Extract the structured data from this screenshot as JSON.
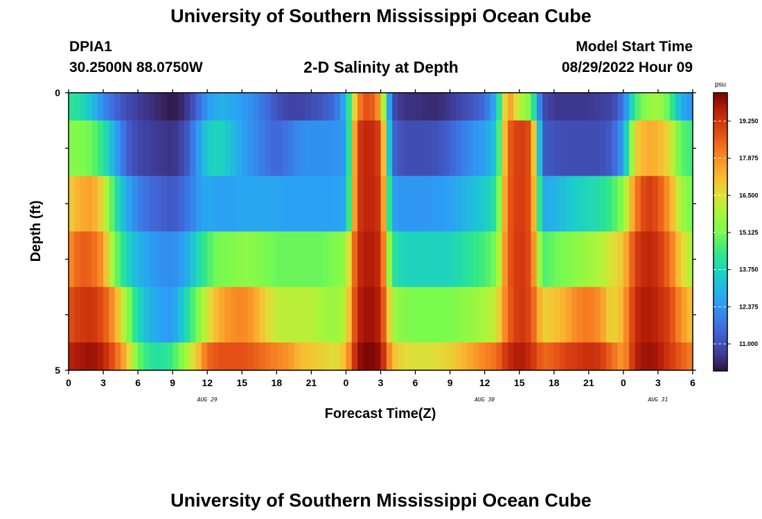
{
  "page": {
    "title_top": "University of Southern Mississippi Ocean Cube",
    "title_bottom": "University of Southern Mississippi Ocean Cube",
    "station": "DPIA1",
    "coords": "30.2500N  88.0750W",
    "chart_title": "2-D Salinity at Depth",
    "model_start_label": "Model Start Time",
    "model_start_value": "08/29/2022 Hour 09"
  },
  "chart_data": {
    "type": "heatmap",
    "title": "2-D Salinity at Depth",
    "xlabel": "Forecast Time(Z)",
    "ylabel": "Depth (ft)",
    "colorbar_unit": "psu",
    "colorbar_ticks": [
      "19.250",
      "17.875",
      "16.500",
      "15.125",
      "13.750",
      "12.375",
      "11.000"
    ],
    "colorbar_values": [
      19.25,
      17.875,
      16.5,
      15.125,
      13.75,
      12.375,
      11.0
    ],
    "zlim": [
      10.0,
      20.3
    ],
    "x_tick_labels": [
      "0",
      "3",
      "6",
      "9",
      "12",
      "15",
      "18",
      "21",
      "0",
      "3",
      "6",
      "9",
      "12",
      "15",
      "18",
      "21",
      "0",
      "3",
      "6"
    ],
    "x_ticks_hours": [
      0,
      3,
      6,
      9,
      12,
      15,
      18,
      21,
      24,
      27,
      30,
      33,
      36,
      39,
      42,
      45,
      48,
      51,
      54
    ],
    "date_labels": [
      {
        "text": "AUG 29",
        "hour": 12
      },
      {
        "text": "AUG 30",
        "hour": 36
      },
      {
        "text": "AUG 31",
        "hour": 51
      }
    ],
    "xlim_hours": [
      0,
      54
    ],
    "y_tick_labels": [
      "0",
      "5"
    ],
    "ylim_ft": [
      0,
      5
    ],
    "depth_bands_ft": [
      [
        0,
        0.5
      ],
      [
        0.5,
        1.5
      ],
      [
        1.5,
        2.5
      ],
      [
        2.5,
        3.5
      ],
      [
        3.5,
        4.5
      ],
      [
        4.5,
        5
      ]
    ],
    "time_knots_hours": [
      0,
      1,
      2,
      3,
      4,
      5,
      6,
      7,
      8,
      9,
      10,
      11,
      12,
      13,
      14,
      15,
      16,
      17,
      18,
      19,
      20,
      21,
      22,
      23,
      24,
      25,
      26,
      27,
      28,
      29,
      30,
      31,
      32,
      33,
      34,
      35,
      36,
      37,
      38,
      39,
      40,
      41,
      42,
      43,
      44,
      45,
      46,
      47,
      48,
      49,
      50,
      51,
      52,
      53,
      54
    ],
    "salinity_by_band": [
      [
        14.3,
        14.0,
        13.2,
        12.2,
        11.5,
        11.0,
        10.7,
        10.5,
        10.3,
        10.1,
        10.4,
        11.3,
        12.5,
        12.9,
        12.8,
        12.5,
        12.2,
        11.7,
        11.1,
        10.8,
        10.8,
        11.0,
        11.2,
        11.6,
        13.0,
        18.0,
        19.0,
        17.5,
        11.0,
        10.5,
        10.5,
        10.4,
        10.4,
        10.6,
        10.9,
        11.2,
        11.6,
        13.0,
        18.0,
        16.0,
        15.2,
        11.0,
        10.6,
        10.6,
        10.6,
        10.6,
        10.7,
        10.8,
        11.8,
        14.5,
        15.5,
        15.8,
        14.8,
        12.8,
        12.3
      ],
      [
        15.3,
        15.3,
        15.0,
        14.2,
        12.8,
        11.4,
        10.9,
        10.7,
        10.6,
        10.5,
        10.9,
        12.2,
        13.5,
        13.8,
        13.3,
        12.6,
        12.2,
        11.8,
        11.5,
        11.8,
        12.2,
        12.3,
        12.3,
        12.3,
        12.5,
        19.2,
        19.6,
        19.0,
        11.5,
        11.0,
        11.0,
        11.0,
        11.1,
        11.4,
        11.9,
        12.3,
        12.6,
        13.4,
        18.5,
        19.2,
        18.8,
        11.3,
        11.1,
        11.0,
        11.0,
        11.0,
        11.0,
        11.3,
        12.6,
        16.8,
        17.4,
        17.3,
        16.6,
        14.8,
        14.5
      ],
      [
        16.8,
        17.4,
        17.6,
        16.6,
        14.3,
        12.8,
        12.0,
        11.6,
        11.4,
        11.2,
        11.6,
        12.3,
        12.8,
        12.6,
        12.6,
        12.7,
        12.7,
        12.7,
        12.7,
        12.6,
        12.6,
        12.6,
        12.6,
        12.6,
        12.8,
        19.2,
        19.6,
        19.2,
        12.6,
        12.4,
        12.4,
        12.4,
        12.5,
        12.6,
        12.9,
        13.2,
        13.5,
        14.2,
        18.6,
        19.2,
        18.8,
        12.8,
        12.9,
        13.3,
        13.6,
        13.8,
        14.0,
        14.5,
        15.4,
        18.0,
        19.2,
        18.8,
        17.6,
        15.8,
        15.0
      ],
      [
        17.8,
        18.6,
        18.5,
        17.7,
        15.2,
        13.8,
        13.0,
        12.6,
        12.3,
        12.2,
        12.6,
        13.6,
        14.6,
        15.2,
        15.2,
        15.5,
        15.4,
        15.2,
        15.0,
        15.0,
        15.0,
        15.0,
        15.0,
        15.2,
        15.6,
        19.4,
        19.8,
        19.4,
        14.2,
        13.7,
        13.7,
        13.7,
        13.7,
        13.7,
        14.0,
        14.3,
        14.6,
        15.2,
        18.6,
        19.3,
        18.8,
        14.6,
        15.0,
        15.2,
        15.5,
        15.7,
        16.0,
        16.5,
        17.0,
        19.0,
        19.6,
        19.3,
        18.4,
        16.8,
        15.8
      ],
      [
        18.8,
        19.2,
        19.3,
        18.8,
        17.6,
        15.6,
        13.8,
        13.0,
        12.6,
        12.5,
        13.6,
        15.0,
        16.4,
        17.4,
        17.8,
        18.0,
        17.6,
        16.8,
        16.2,
        16.1,
        16.1,
        16.1,
        15.8,
        15.6,
        16.2,
        19.6,
        20.0,
        19.6,
        15.8,
        15.3,
        15.2,
        15.2,
        15.2,
        15.2,
        15.4,
        15.6,
        15.9,
        16.3,
        18.5,
        19.3,
        18.9,
        16.8,
        17.0,
        17.4,
        18.0,
        18.2,
        17.8,
        16.6,
        17.4,
        19.4,
        19.8,
        19.5,
        19.0,
        17.8,
        17.0
      ],
      [
        19.6,
        19.8,
        20.0,
        19.6,
        18.6,
        17.2,
        15.0,
        14.2,
        14.0,
        14.5,
        15.6,
        16.8,
        18.4,
        18.8,
        18.8,
        18.8,
        18.6,
        18.3,
        18.0,
        17.8,
        17.2,
        17.0,
        16.8,
        16.5,
        17.2,
        20.0,
        20.3,
        20.0,
        17.2,
        16.6,
        16.5,
        16.5,
        16.6,
        16.8,
        17.2,
        17.6,
        18.0,
        18.3,
        19.4,
        19.8,
        19.4,
        18.4,
        18.6,
        19.0,
        19.2,
        19.4,
        19.2,
        18.4,
        17.6,
        19.6,
        20.0,
        19.8,
        19.2,
        18.6,
        18.0
      ]
    ]
  }
}
